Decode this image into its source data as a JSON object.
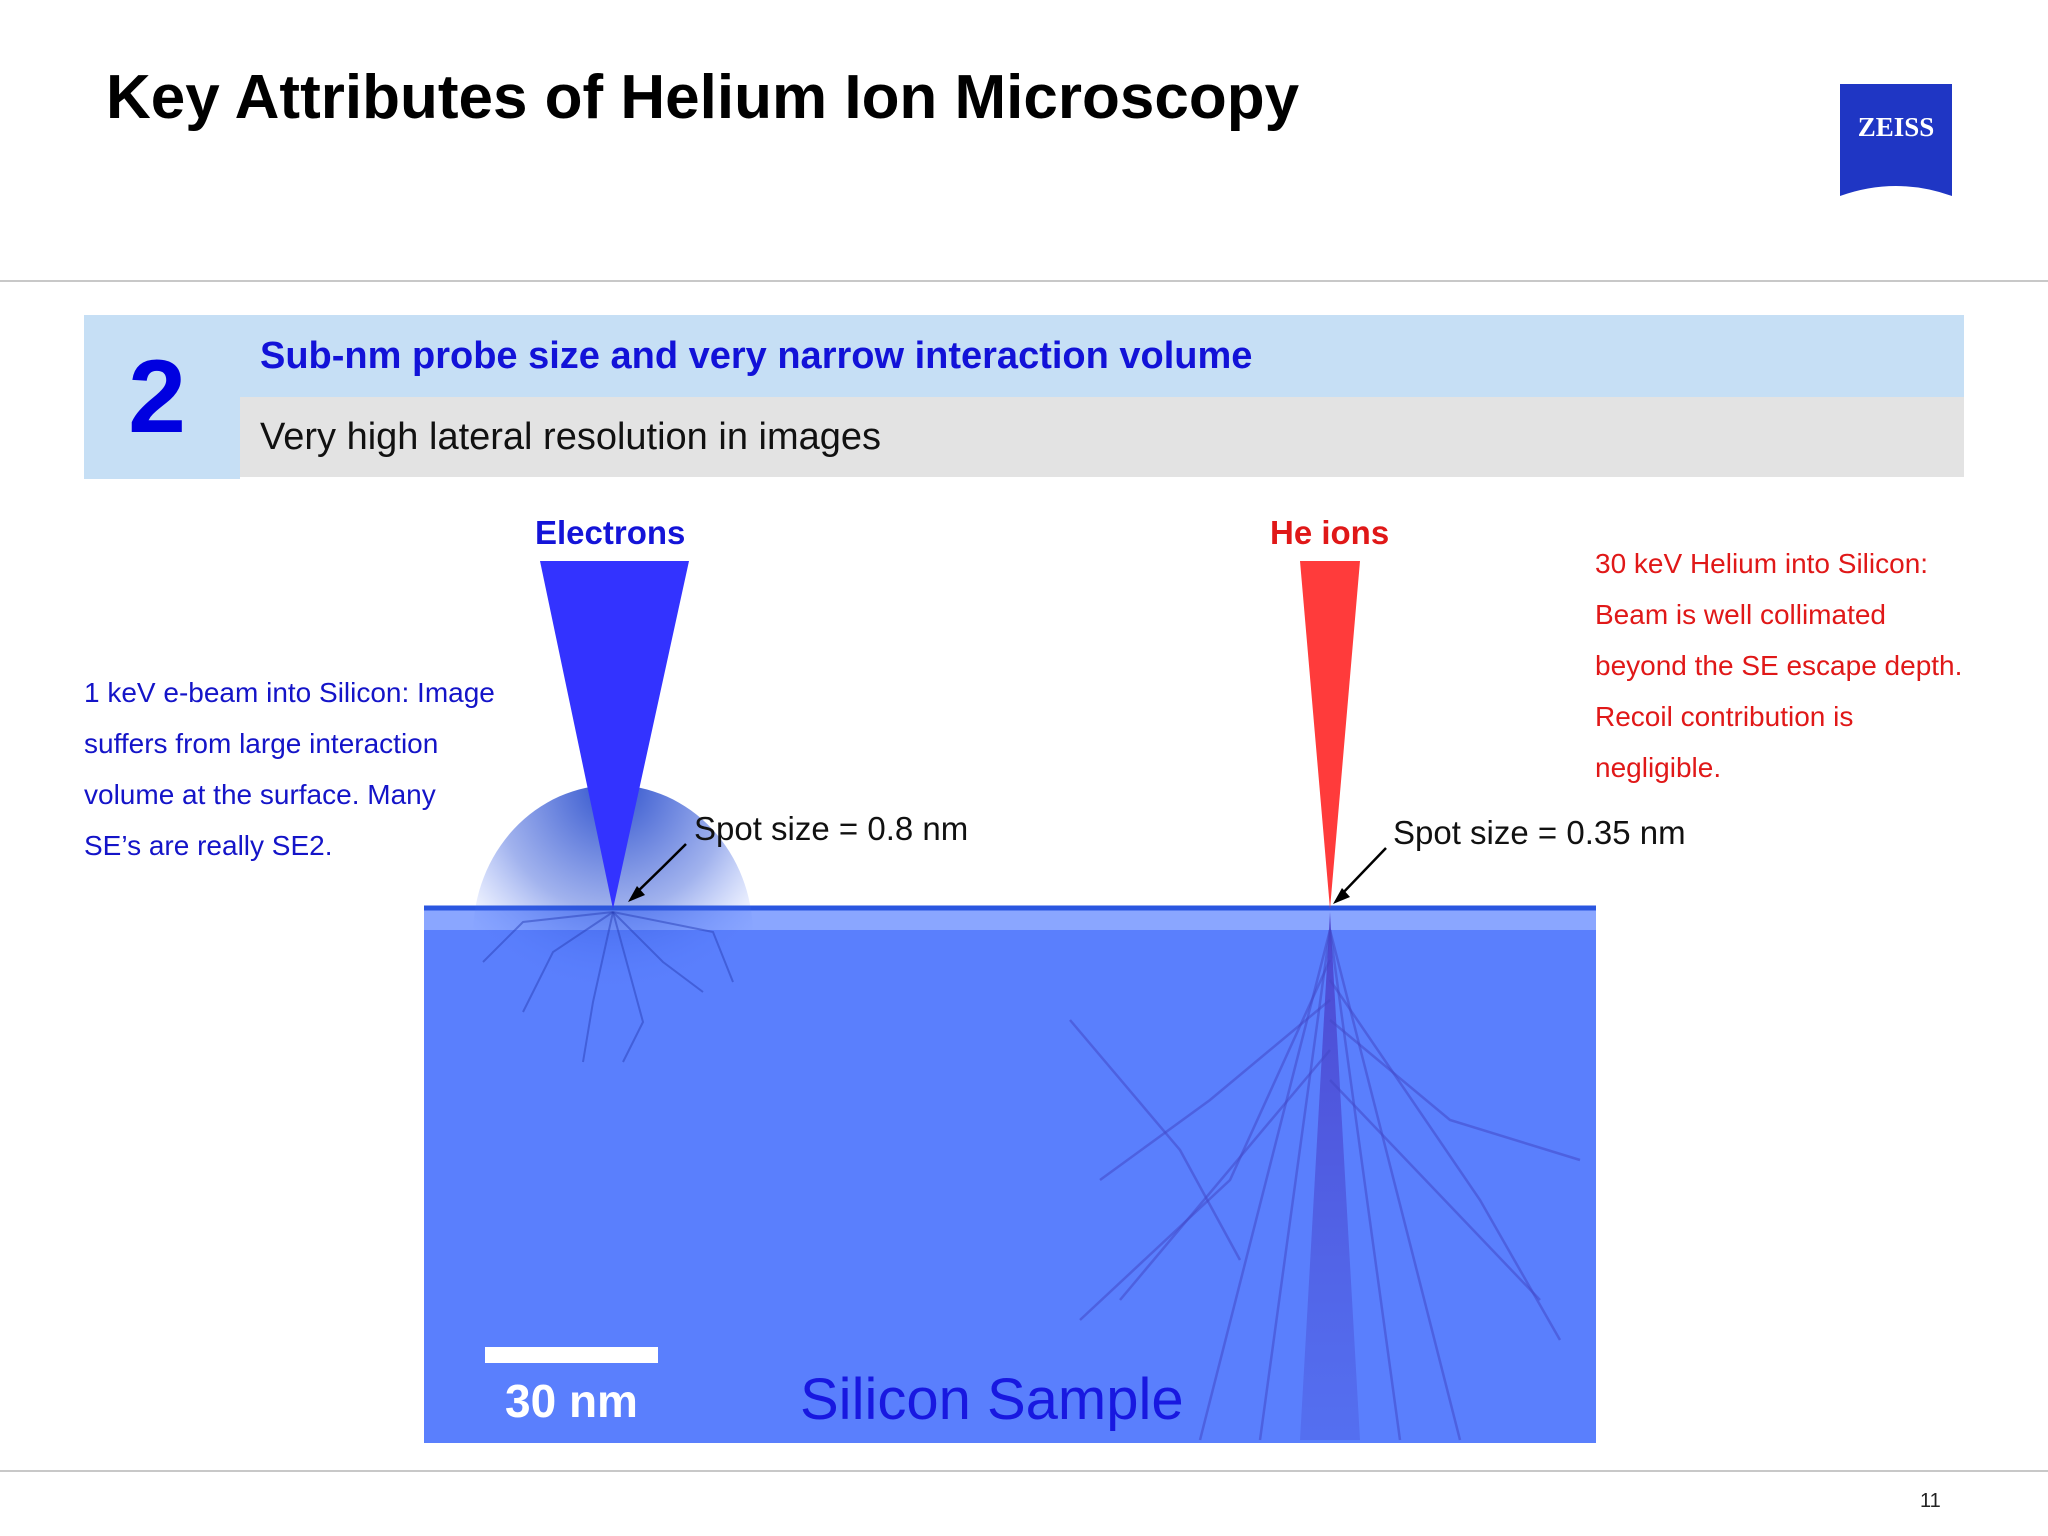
{
  "slide": {
    "title": "Key Attributes of Helium Ion Microscopy",
    "logo_text": "ZEISS",
    "page_number": "11"
  },
  "attribute": {
    "number": "2",
    "heading": "Sub-nm probe size and very narrow interaction volume",
    "subheading": "Very high lateral resolution in images"
  },
  "electrons": {
    "label": "Electrons",
    "spot_label": "Spot size = 0.8 nm",
    "note_lines": [
      "1 keV e-beam into Silicon:  Image",
      "suffers from large interaction",
      "volume at the surface.  Many",
      "SE’s are really SE2."
    ]
  },
  "he_ions": {
    "label": "He ions",
    "spot_label": "Spot size = 0.35 nm",
    "note_lines": [
      "30 keV Helium into Silicon:",
      "Beam is well collimated",
      "beyond the SE escape depth.",
      "Recoil contribution is",
      "negligible."
    ]
  },
  "sample": {
    "label": "Silicon Sample",
    "scale_bar_label": "30 nm"
  },
  "colors": {
    "electron_blue": "#3333ff",
    "ion_red": "#ff3b3b",
    "sample_blue": "#5a7ffd",
    "header_blue": "#c6dff5",
    "zeiss_blue": "#1f36c4"
  }
}
